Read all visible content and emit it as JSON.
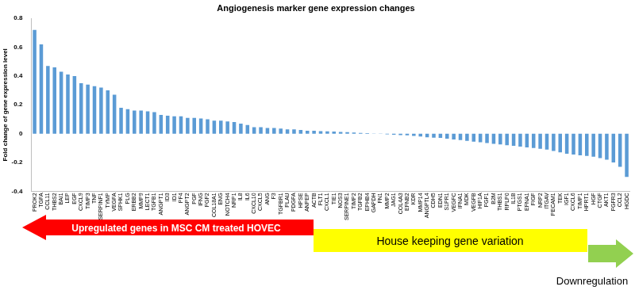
{
  "chart_data": {
    "type": "bar",
    "title": "Angiogenesis marker gene expression changes",
    "y_label": "Fold change of gene expression level",
    "categories": [
      "PROK2",
      "TGFA",
      "CCL11",
      "THBS2",
      "BAI1",
      "LEP",
      "EGF",
      "CXCL9",
      "TIMP3",
      "TNF",
      "SERPINF1",
      "TYMP",
      "VEGFA",
      "SPHK1",
      "PLG",
      "ERBB2",
      "MMP9",
      "LECT1",
      "TGFB1",
      "ANGPT1",
      "ID3",
      "ID1",
      "PF4",
      "ANGPT2",
      "PGF",
      "IFNG",
      "FGF2",
      "COL18A1",
      "ENG",
      "NOTCH4",
      "NRP1",
      "IL8",
      "IL6",
      "CXCL10",
      "CXCL5",
      "ANG",
      "F3",
      "TGFBR1",
      "PLAU",
      "PDGFA",
      "HPSE",
      "ANPEP",
      "ACTB",
      "FLT1",
      "CXCL1",
      "TIE1",
      "NOS3",
      "SERPINE1",
      "TIMP2",
      "TGFB2",
      "EPHB4",
      "GAPDH",
      "FN1",
      "MMP2",
      "JAG1",
      "COL4A3",
      "EFNB2",
      "KDR",
      "MMP14",
      "ANGPTL4",
      "CDH5",
      "EDN1",
      "S1PR1",
      "VEGFC",
      "IFNA1",
      "MDK",
      "VEGFB",
      "HIF1A",
      "FGF1",
      "B2M",
      "THBS1",
      "RPLP0",
      "IL1B",
      "PTGS1",
      "EFNA1",
      "FIGF",
      "NRP2",
      "ITGAV",
      "PECAM1",
      "TEK",
      "IGF1",
      "CXCL6",
      "TIMP1",
      "HPRT1",
      "HGF",
      "CTGF",
      "AKT1",
      "FGFR3",
      "CCL2",
      "HGDC"
    ],
    "values": [
      0.72,
      0.62,
      0.47,
      0.46,
      0.43,
      0.41,
      0.4,
      0.35,
      0.34,
      0.33,
      0.32,
      0.3,
      0.27,
      0.18,
      0.17,
      0.16,
      0.16,
      0.155,
      0.15,
      0.13,
      0.125,
      0.12,
      0.12,
      0.11,
      0.11,
      0.105,
      0.1,
      0.09,
      0.09,
      0.085,
      0.08,
      0.07,
      0.06,
      0.045,
      0.045,
      0.04,
      0.04,
      0.035,
      0.03,
      0.03,
      0.025,
      0.02,
      0.02,
      0.018,
      0.016,
      0.015,
      0.012,
      0.01,
      0.008,
      0.005,
      0.003,
      0.001,
      -0.002,
      -0.005,
      -0.008,
      -0.01,
      -0.012,
      -0.015,
      -0.02,
      -0.025,
      -0.028,
      -0.03,
      -0.035,
      -0.04,
      -0.045,
      -0.05,
      -0.055,
      -0.06,
      -0.065,
      -0.07,
      -0.075,
      -0.08,
      -0.085,
      -0.09,
      -0.095,
      -0.1,
      -0.105,
      -0.11,
      -0.12,
      -0.13,
      -0.14,
      -0.145,
      -0.15,
      -0.155,
      -0.16,
      -0.17,
      -0.18,
      -0.2,
      -0.23,
      -0.3
    ],
    "color": "#5b9bd5",
    "ylim": [
      -0.4,
      0.8
    ],
    "yticks": [
      -0.4,
      -0.2,
      0,
      0.2,
      0.4,
      0.6,
      0.8
    ],
    "grid": false,
    "annotations": [
      {
        "text": "Upregulated genes in MSC CM treated HOVEC",
        "color": "#ff0000"
      },
      {
        "text": "House keeping gene variation",
        "color": "#ffff00"
      },
      {
        "text": "Downregulation",
        "color": "#92d050"
      }
    ]
  }
}
